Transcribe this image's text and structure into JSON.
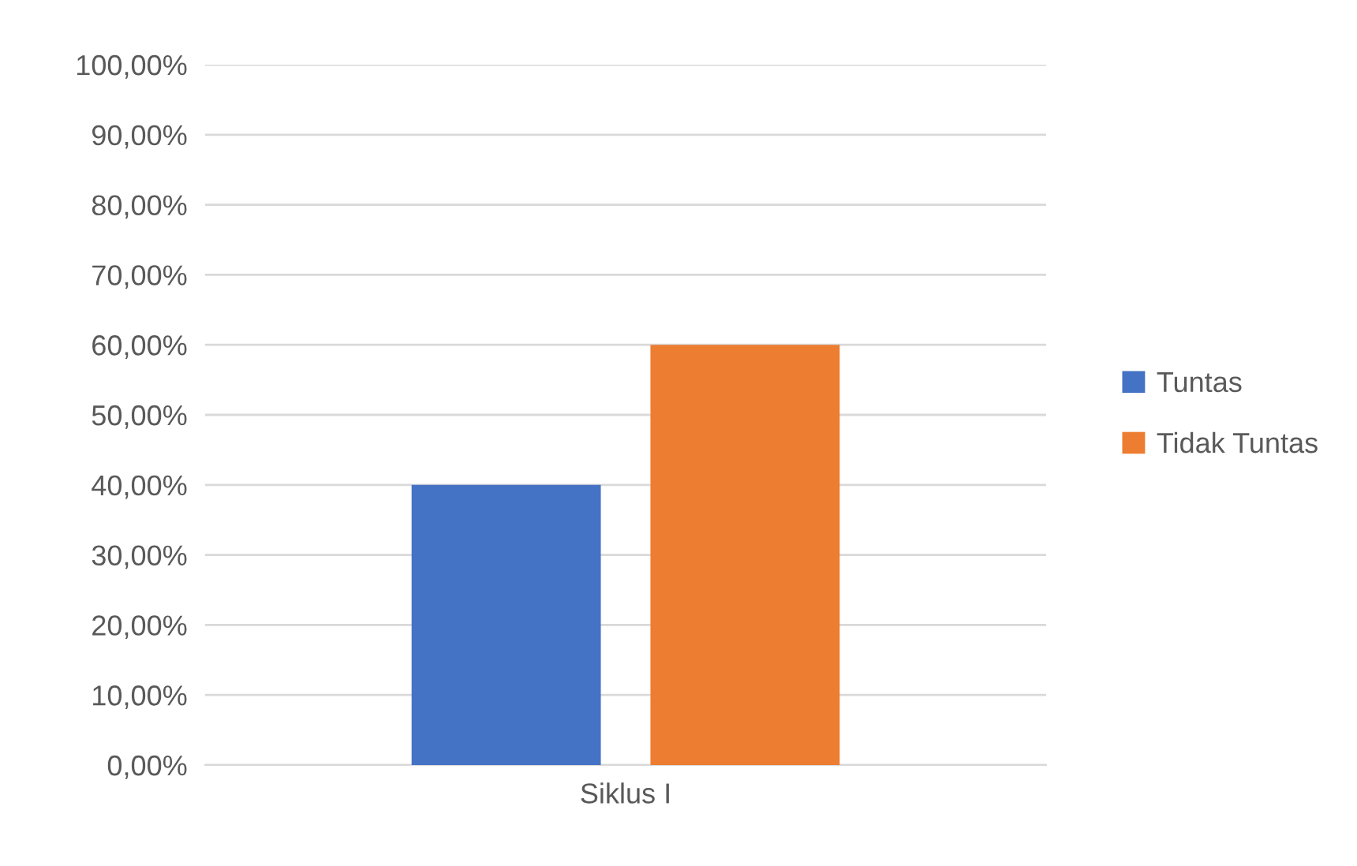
{
  "chart_data": {
    "type": "bar",
    "categories": [
      "Siklus I"
    ],
    "series": [
      {
        "name": "Tuntas",
        "color": "#4472c4",
        "values": [
          40
        ]
      },
      {
        "name": "Tidak Tuntas",
        "color": "#ed7d31",
        "values": [
          60
        ]
      }
    ],
    "ylim": [
      0,
      100
    ],
    "yticks": [
      {
        "value": 0,
        "label": "0,00%"
      },
      {
        "value": 10,
        "label": "10,00%"
      },
      {
        "value": 20,
        "label": "20,00%"
      },
      {
        "value": 30,
        "label": "30,00%"
      },
      {
        "value": 40,
        "label": "40,00%"
      },
      {
        "value": 50,
        "label": "50,00%"
      },
      {
        "value": 60,
        "label": "60,00%"
      },
      {
        "value": 70,
        "label": "70,00%"
      },
      {
        "value": 80,
        "label": "80,00%"
      },
      {
        "value": 90,
        "label": "90,00%"
      },
      {
        "value": 100,
        "label": "100,00%"
      }
    ],
    "grid": "y",
    "legend": "right"
  }
}
